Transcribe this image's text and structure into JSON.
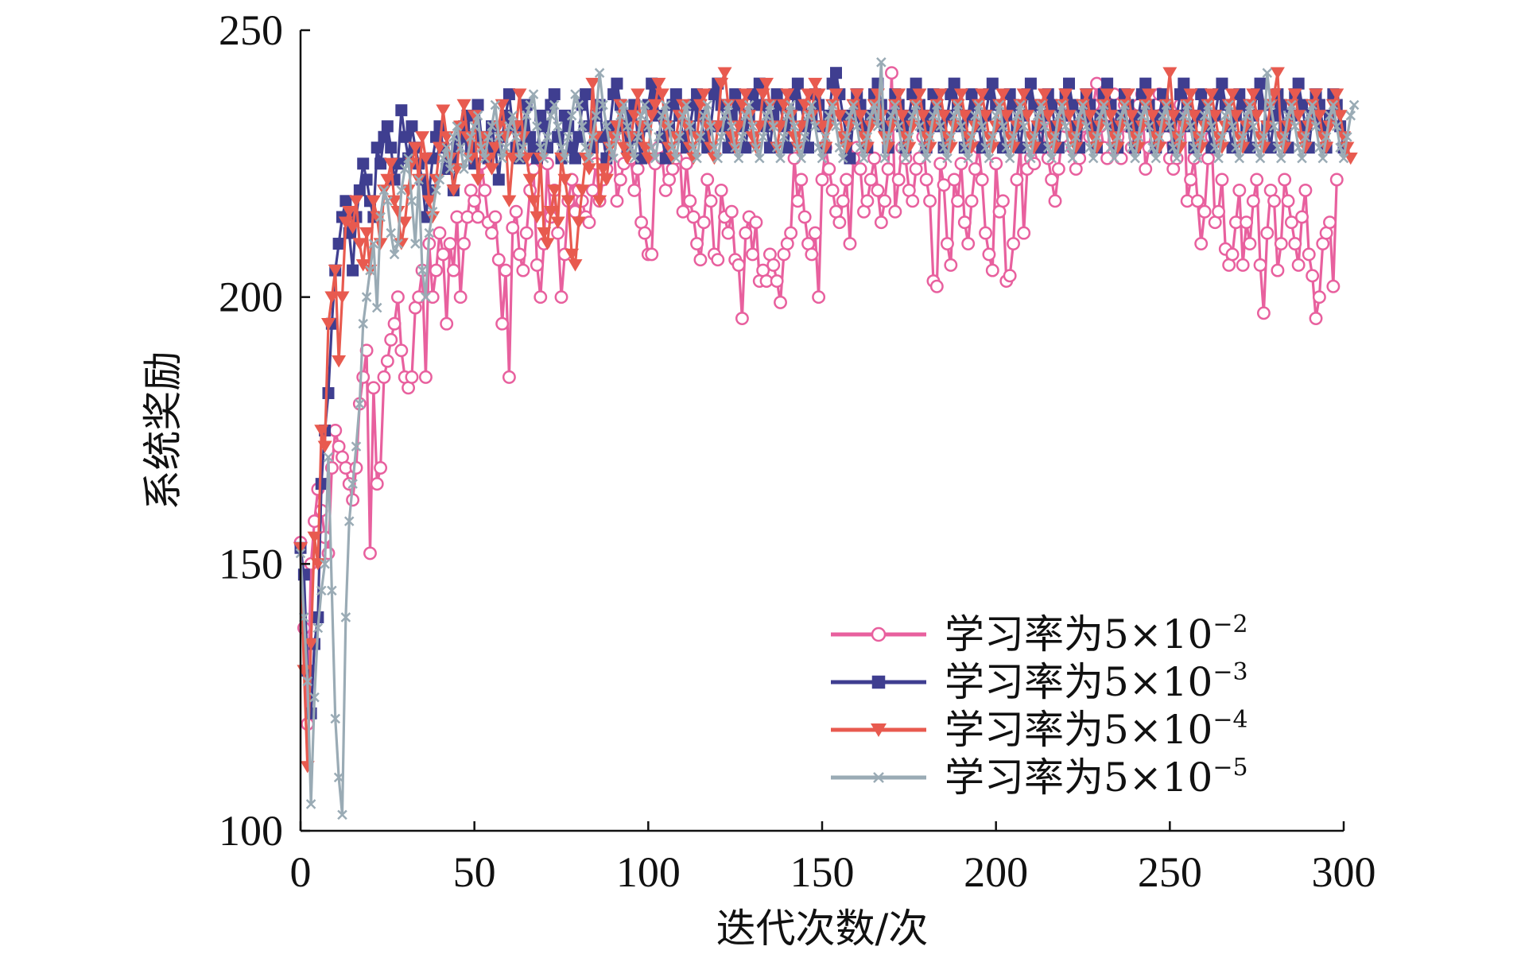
{
  "chart_data": {
    "type": "line",
    "title": "",
    "xlabel": "迭代次数/次",
    "ylabel": "系统奖励",
    "xlim": [
      0,
      300
    ],
    "ylim": [
      100,
      250
    ],
    "xticks": [
      0,
      50,
      100,
      150,
      200,
      250,
      300
    ],
    "yticks": [
      100,
      150,
      200,
      250
    ],
    "grid": false,
    "legend_position": "bottom-right",
    "series": [
      {
        "name": "学习率为5×10⁻²",
        "label_main": "学习率为5×10",
        "label_exp": "−2",
        "color": "#e8609e",
        "marker": "circle",
        "values": [
          154,
          138,
          120,
          150,
          158,
          164,
          160,
          155,
          152,
          168,
          175,
          172,
          170,
          168,
          165,
          162,
          168,
          180,
          185,
          190,
          152,
          183,
          165,
          168,
          185,
          188,
          192,
          195,
          200,
          190,
          185,
          183,
          185,
          198,
          200,
          205,
          185,
          210,
          200,
          205,
          212,
          208,
          195,
          210,
          205,
          215,
          200,
          210,
          215,
          220,
          218,
          215,
          225,
          220,
          214,
          212,
          215,
          207,
          195,
          205,
          185,
          213,
          216,
          208,
          205,
          212,
          220,
          224,
          206,
          200,
          210,
          225,
          215,
          220,
          212,
          200,
          208,
          218,
          222,
          216,
          220,
          218,
          215,
          214,
          220,
          225,
          218,
          222,
          224,
          228,
          230,
          218,
          222,
          225,
          232,
          226,
          220,
          224,
          214,
          212,
          208,
          208,
          225,
          228,
          226,
          220,
          222,
          224,
          226,
          228,
          216,
          225,
          218,
          215,
          210,
          207,
          214,
          222,
          218,
          208,
          207,
          220,
          215,
          212,
          216,
          207,
          206,
          196,
          212,
          215,
          208,
          214,
          203,
          205,
          203,
          208,
          206,
          203,
          199,
          208,
          210,
          212,
          226,
          218,
          222,
          215,
          210,
          208,
          212,
          200,
          222,
          228,
          224,
          220,
          216,
          214,
          218,
          222,
          210,
          226,
          228,
          224,
          216,
          218,
          222,
          226,
          220,
          214,
          218,
          224,
          242,
          216,
          222,
          228,
          226,
          220,
          218,
          224,
          226,
          230,
          222,
          218,
          203,
          202,
          225,
          221,
          210,
          206,
          222,
          218,
          225,
          214,
          210,
          218,
          224,
          228,
          222,
          212,
          208,
          205,
          225,
          216,
          218,
          203,
          204,
          210,
          222,
          228,
          212,
          224,
          226,
          225,
          230,
          232,
          228,
          226,
          222,
          218,
          224,
          230,
          232,
          236,
          228,
          224,
          226,
          232,
          234,
          230,
          236,
          240,
          232,
          228,
          226,
          234,
          238,
          230,
          226,
          236,
          232,
          228,
          230,
          236,
          238,
          224,
          228,
          232,
          236,
          238,
          234,
          230,
          226,
          224,
          226,
          236,
          238,
          218,
          222,
          226,
          218,
          210,
          216,
          226,
          230,
          214,
          216,
          222,
          209,
          206,
          208,
          214,
          220,
          206,
          214,
          210,
          218,
          222,
          206,
          197,
          212,
          220,
          218,
          205,
          210,
          222,
          218,
          214,
          210,
          206,
          215,
          220,
          208,
          204,
          196,
          200,
          210,
          212,
          214,
          202,
          222
        ]
      },
      {
        "name": "学习率为5×10⁻³",
        "label_main": "学习率为5×10",
        "label_exp": "−3",
        "color": "#3f3e90",
        "marker": "square",
        "values": [
          153,
          148,
          130,
          122,
          135,
          140,
          165,
          175,
          182,
          195,
          205,
          210,
          215,
          218,
          212,
          205,
          215,
          220,
          225,
          222,
          218,
          215,
          228,
          225,
          230,
          232,
          228,
          222,
          225,
          235,
          230,
          226,
          232,
          228,
          225,
          222,
          215,
          220,
          226,
          230,
          232,
          228,
          224,
          226,
          220,
          228,
          230,
          232,
          234,
          228,
          225,
          236,
          230,
          228,
          226,
          232,
          228,
          222,
          230,
          234,
          238,
          232,
          228,
          226,
          232,
          236,
          230,
          228,
          226,
          234,
          232,
          228,
          236,
          238,
          230,
          226,
          234,
          232,
          228,
          226,
          230,
          236,
          238,
          232,
          228,
          234,
          236,
          230,
          226,
          232,
          238,
          240,
          236,
          232,
          228,
          234,
          236,
          230,
          226,
          232,
          236,
          240,
          238,
          234,
          230,
          226,
          232,
          236,
          238,
          234,
          230,
          228,
          232,
          236,
          238,
          234,
          230,
          228,
          232,
          238,
          240,
          236,
          232,
          228,
          234,
          238,
          236,
          232,
          228,
          234,
          238,
          236,
          240,
          236,
          232,
          228,
          234,
          238,
          236,
          232,
          228,
          234,
          238,
          240,
          236,
          232,
          228,
          234,
          238,
          236,
          232,
          228,
          234,
          240,
          242,
          238,
          234,
          230,
          226,
          234,
          238,
          236,
          232,
          228,
          234,
          238,
          240,
          236,
          232,
          228,
          234,
          238,
          236,
          232,
          228,
          234,
          238,
          240,
          236,
          232,
          228,
          234,
          238,
          236,
          232,
          228,
          234,
          238,
          240,
          236,
          232,
          228,
          234,
          238,
          236,
          232,
          228,
          234,
          238,
          240,
          236,
          232,
          228,
          234,
          238,
          236,
          232,
          228,
          234,
          238,
          240,
          236,
          232,
          228,
          234,
          238,
          236,
          232,
          228,
          234,
          238,
          240,
          236,
          232,
          228,
          234,
          238,
          236,
          232,
          228,
          234,
          238,
          240,
          236,
          232,
          228,
          234,
          238,
          236,
          232,
          228,
          234,
          238,
          240,
          236,
          232,
          228,
          234,
          238,
          236,
          232,
          228,
          234,
          238,
          240,
          236,
          232,
          228,
          234,
          238,
          236,
          232,
          228,
          234,
          238,
          240,
          236,
          232,
          228,
          234,
          238,
          236,
          232,
          228,
          234,
          238,
          240,
          236,
          232,
          228,
          234,
          238,
          236,
          232,
          228,
          234,
          238,
          240,
          236,
          232,
          228,
          234,
          238,
          236,
          232,
          228,
          234,
          238,
          236,
          232,
          228
        ]
      },
      {
        "name": "学习率为5×10⁻⁴",
        "label_main": "学习率为5×10",
        "label_exp": "−4",
        "color": "#e85a4f",
        "marker": "triangle-down",
        "values": [
          153,
          130,
          112,
          135,
          155,
          150,
          175,
          172,
          195,
          200,
          205,
          188,
          200,
          214,
          216,
          213,
          218,
          210,
          206,
          212,
          205,
          218,
          215,
          210,
          220,
          222,
          225,
          218,
          216,
          210,
          214,
          220,
          225,
          228,
          222,
          230,
          226,
          218,
          215,
          222,
          228,
          235,
          230,
          226,
          220,
          224,
          232,
          236,
          230,
          226,
          234,
          222,
          228,
          230,
          226,
          224,
          228,
          232,
          236,
          230,
          218,
          226,
          232,
          238,
          230,
          226,
          222,
          218,
          215,
          226,
          212,
          210,
          216,
          220,
          214,
          226,
          222,
          218,
          208,
          206,
          214,
          220,
          226,
          224,
          240,
          230,
          218,
          224,
          222,
          228,
          230,
          232,
          236,
          228,
          226,
          230,
          234,
          238,
          232,
          228,
          226,
          234,
          236,
          240,
          238,
          232,
          228,
          226,
          230,
          234,
          236,
          232,
          228,
          226,
          230,
          236,
          238,
          232,
          228,
          226,
          232,
          240,
          242,
          236,
          230,
          228,
          232,
          236,
          238,
          234,
          230,
          228,
          232,
          238,
          240,
          236,
          232,
          228,
          232,
          236,
          238,
          234,
          230,
          228,
          232,
          236,
          238,
          234,
          240,
          238,
          232,
          228,
          232,
          236,
          238,
          234,
          230,
          228,
          232,
          236,
          238,
          234,
          230,
          228,
          232,
          236,
          238,
          234,
          230,
          228,
          232,
          236,
          238,
          234,
          230,
          228,
          232,
          236,
          238,
          234,
          230,
          228,
          232,
          236,
          238,
          234,
          230,
          228,
          232,
          236,
          238,
          234,
          230,
          228,
          232,
          236,
          238,
          234,
          230,
          228,
          232,
          236,
          238,
          234,
          230,
          228,
          232,
          236,
          238,
          234,
          230,
          228,
          232,
          236,
          238,
          234,
          230,
          228,
          232,
          236,
          238,
          234,
          230,
          228,
          232,
          236,
          238,
          234,
          230,
          228,
          232,
          236,
          238,
          234,
          230,
          228,
          232,
          236,
          238,
          234,
          230,
          228,
          232,
          236,
          238,
          234,
          230,
          228,
          232,
          236,
          242,
          234,
          230,
          228,
          232,
          236,
          238,
          234,
          230,
          228,
          232,
          236,
          238,
          234,
          230,
          228,
          232,
          236,
          238,
          234,
          230,
          228,
          232,
          236,
          238,
          234,
          230,
          228,
          232,
          236,
          238,
          242,
          230,
          228,
          232,
          236,
          238,
          234,
          230,
          228,
          232,
          236,
          238,
          234,
          230,
          228,
          232,
          236,
          238,
          234,
          230,
          228,
          226
        ]
      },
      {
        "name": "学习率为5×10⁻⁵",
        "label_main": "学习率为5×10",
        "label_exp": "−5",
        "color": "#9aabb5",
        "marker": "x",
        "values": [
          152,
          140,
          128,
          105,
          125,
          138,
          145,
          150,
          170,
          145,
          121,
          110,
          103,
          140,
          158,
          165,
          172,
          180,
          195,
          200,
          205,
          210,
          198,
          215,
          220,
          218,
          212,
          208,
          210,
          220,
          224,
          226,
          218,
          210,
          222,
          205,
          200,
          212,
          216,
          220,
          222,
          226,
          228,
          224,
          230,
          232,
          228,
          224,
          226,
          230,
          232,
          234,
          228,
          226,
          230,
          232,
          236,
          230,
          226,
          228,
          232,
          234,
          230,
          226,
          228,
          234,
          236,
          238,
          232,
          228,
          226,
          230,
          234,
          236,
          232,
          228,
          226,
          230,
          234,
          238,
          236,
          232,
          228,
          226,
          230,
          234,
          242,
          236,
          232,
          228,
          226,
          230,
          234,
          236,
          232,
          228,
          226,
          230,
          234,
          236,
          232,
          228,
          226,
          230,
          234,
          236,
          232,
          228,
          226,
          230,
          234,
          236,
          232,
          228,
          226,
          230,
          234,
          236,
          232,
          228,
          226,
          230,
          234,
          236,
          232,
          228,
          226,
          230,
          234,
          236,
          232,
          228,
          226,
          230,
          234,
          236,
          232,
          228,
          226,
          230,
          234,
          236,
          232,
          228,
          226,
          230,
          234,
          236,
          232,
          228,
          226,
          230,
          234,
          236,
          232,
          228,
          226,
          230,
          234,
          236,
          232,
          228,
          226,
          230,
          234,
          236,
          232,
          244,
          226,
          230,
          234,
          236,
          232,
          228,
          226,
          230,
          234,
          236,
          232,
          228,
          226,
          230,
          234,
          236,
          232,
          228,
          226,
          230,
          234,
          236,
          232,
          228,
          226,
          230,
          234,
          236,
          232,
          228,
          226,
          230,
          234,
          236,
          232,
          228,
          226,
          230,
          234,
          236,
          232,
          228,
          226,
          230,
          234,
          236,
          232,
          228,
          226,
          230,
          234,
          236,
          232,
          228,
          226,
          230,
          234,
          236,
          232,
          228,
          226,
          230,
          234,
          236,
          232,
          228,
          226,
          230,
          234,
          236,
          232,
          228,
          226,
          230,
          234,
          236,
          232,
          228,
          226,
          230,
          234,
          236,
          232,
          228,
          226,
          230,
          234,
          236,
          232,
          228,
          226,
          230,
          234,
          236,
          232,
          228,
          226,
          230,
          234,
          236,
          232,
          228,
          226,
          230,
          234,
          236,
          232,
          228,
          226,
          230,
          242,
          236,
          232,
          228,
          226,
          230,
          234,
          236,
          232,
          228,
          226,
          230,
          234,
          236,
          232,
          228,
          226,
          230,
          234,
          236,
          232,
          228,
          226,
          230,
          234,
          236
        ]
      }
    ]
  }
}
